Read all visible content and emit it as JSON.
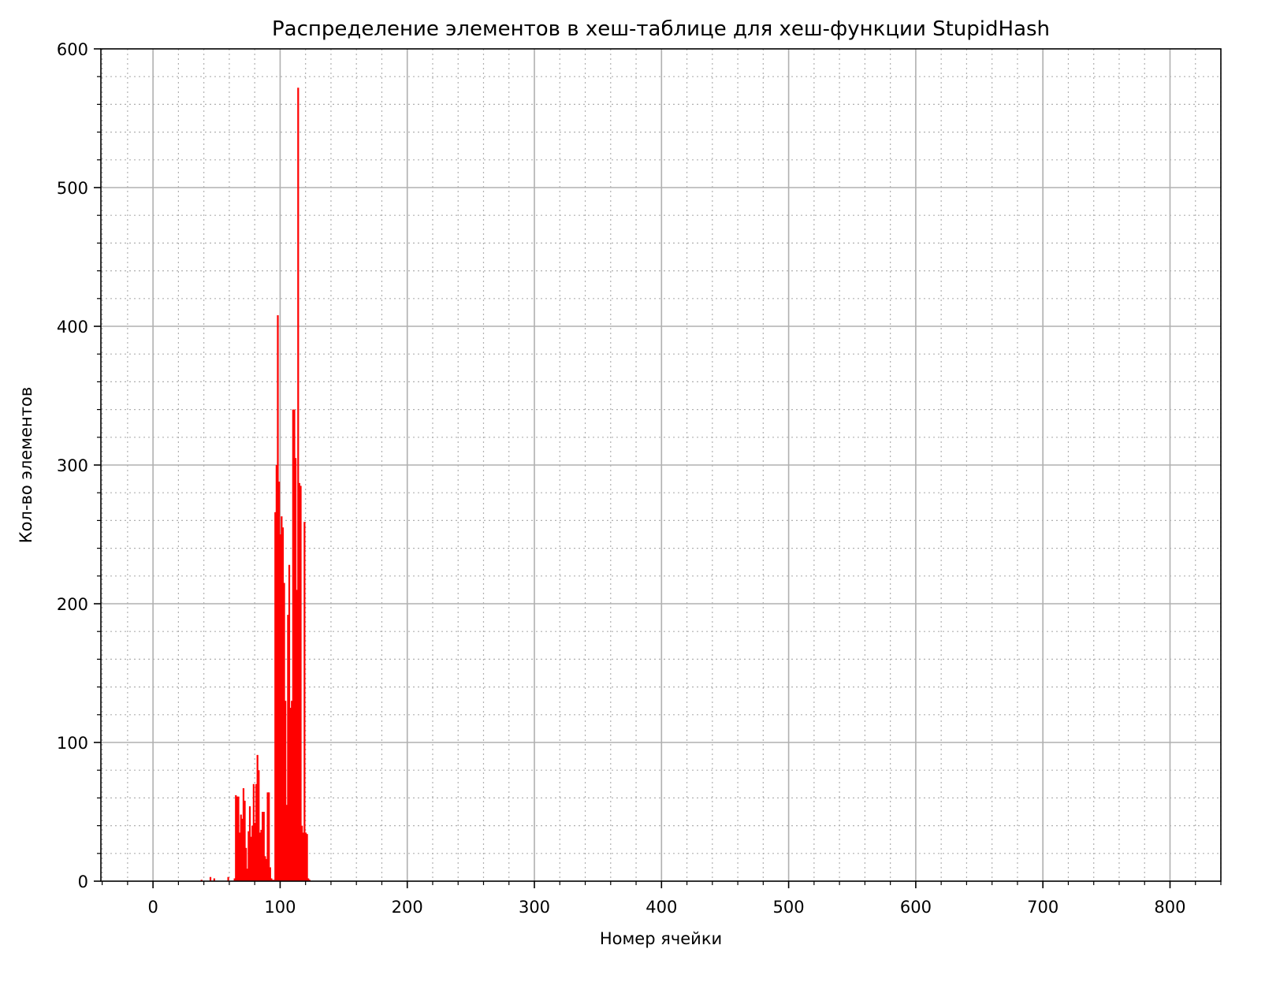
{
  "chart_data": {
    "type": "bar",
    "title": "Распределение элементов в хеш-таблице для хеш-функции StupidHash",
    "xlabel": "Номер ячейки",
    "ylabel": "Кол-во элементов",
    "xlim": [
      -41,
      840
    ],
    "ylim": [
      0,
      600
    ],
    "xticks": [
      0,
      100,
      200,
      300,
      400,
      500,
      600,
      700,
      800
    ],
    "yticks": [
      0,
      100,
      200,
      300,
      400,
      500,
      600
    ],
    "x_minor_step": 20,
    "y_minor_step": 20,
    "grid": true,
    "legend": "none",
    "bar_color": "#ff0000",
    "x": [
      38,
      45,
      48,
      59,
      64,
      65,
      66,
      67,
      68,
      69,
      70,
      71,
      72,
      73,
      74,
      75,
      76,
      77,
      78,
      79,
      80,
      81,
      82,
      83,
      84,
      85,
      86,
      87,
      88,
      89,
      90,
      91,
      92,
      93,
      94,
      95,
      96,
      97,
      98,
      99,
      100,
      101,
      102,
      103,
      104,
      105,
      106,
      107,
      108,
      109,
      110,
      111,
      112,
      113,
      114,
      115,
      116,
      117,
      118,
      119,
      120,
      121,
      122,
      123
    ],
    "values": [
      1,
      3,
      2,
      3,
      2,
      62,
      61,
      61,
      35,
      48,
      45,
      67,
      58,
      24,
      9,
      36,
      54,
      32,
      40,
      70,
      42,
      70,
      91,
      80,
      35,
      37,
      50,
      50,
      18,
      16,
      64,
      64,
      10,
      2,
      1,
      1,
      266,
      300,
      408,
      288,
      250,
      263,
      255,
      215,
      130,
      55,
      192,
      228,
      125,
      130,
      340,
      340,
      305,
      210,
      572,
      287,
      285,
      40,
      35,
      259,
      35,
      34,
      2,
      1
    ]
  }
}
